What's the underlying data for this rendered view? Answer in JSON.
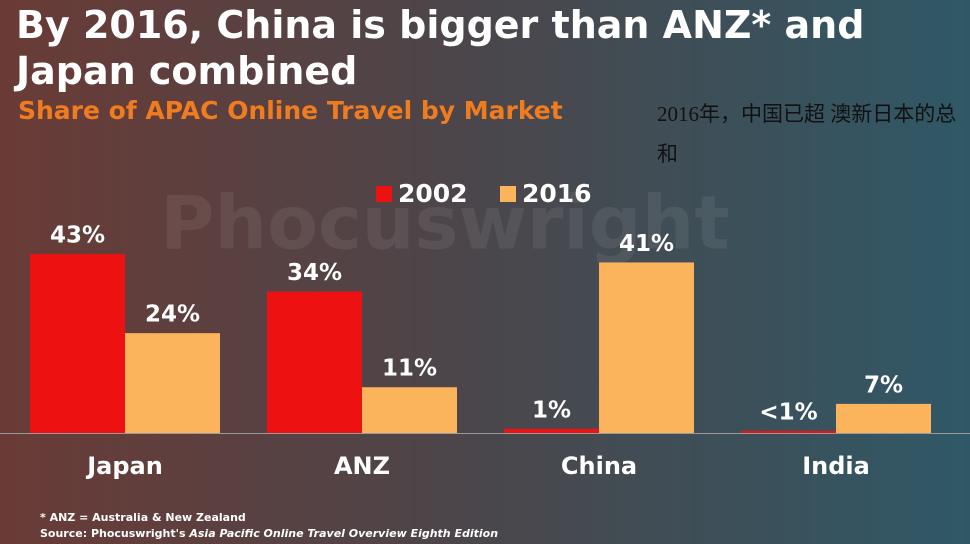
{
  "chart_data": {
    "type": "bar",
    "title": "By 2016, China is bigger than ANZ* and Japan combined",
    "subtitle": "Share of APAC Online Travel by Market",
    "annotation": "2016年，中国已超 澳新日本的总和",
    "watermark": "Phocuswright",
    "categories": [
      "Japan",
      "ANZ",
      "China",
      "India"
    ],
    "series": [
      {
        "name": "2002",
        "color": "#ee1111",
        "values": [
          43,
          34,
          1,
          0.5
        ],
        "value_labels": [
          "43%",
          "34%",
          "1%",
          "<1%"
        ]
      },
      {
        "name": "2016",
        "color": "#fbb45c",
        "values": [
          24,
          11,
          41,
          7
        ],
        "value_labels": [
          "24%",
          "11%",
          "41%",
          "7%"
        ]
      }
    ],
    "footnote": "* ANZ = Australia & New Zealand",
    "source_prefix": "Source: Phocuswright's",
    "source_title": "Asia Pacific Online Travel Overview Eighth Edition"
  }
}
